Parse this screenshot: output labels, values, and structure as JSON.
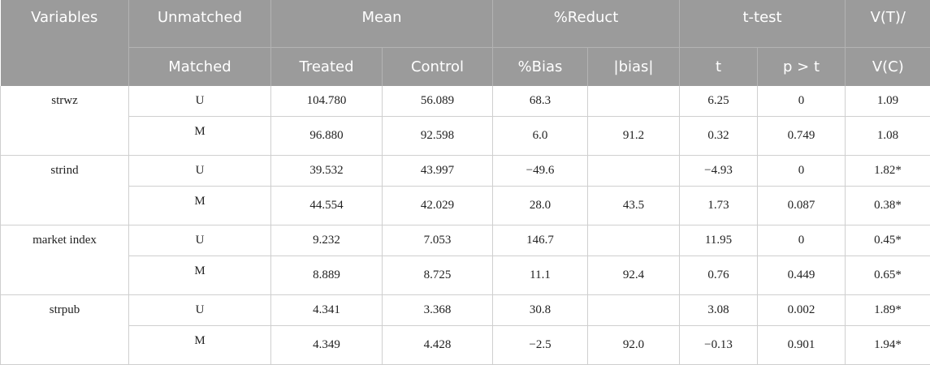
{
  "header": {
    "row1": {
      "variables": "Variables",
      "unmatched": "Unmatched",
      "mean": "Mean",
      "reduct": "%Reduct",
      "ttest": "t-test",
      "vratio_top": "V(T)/"
    },
    "row2": {
      "matched": "Matched",
      "treated": "Treated",
      "control": "Control",
      "bias_pct": "%Bias",
      "bias_abs": "|bias|",
      "t": "t",
      "p": "p > t",
      "vratio_bottom": "V(C)"
    }
  },
  "rows": [
    {
      "variable": "strwz",
      "sample": "U",
      "treated": "104.780",
      "control": "56.089",
      "bias": "68.3",
      "abs_bias": "",
      "t": "6.25",
      "p": "0",
      "vratio": "1.09"
    },
    {
      "variable": "",
      "sample": "M",
      "treated": "96.880",
      "control": "92.598",
      "bias": "6.0",
      "abs_bias": "91.2",
      "t": "0.32",
      "p": "0.749",
      "vratio": "1.08"
    },
    {
      "variable": "strind",
      "sample": "U",
      "treated": "39.532",
      "control": "43.997",
      "bias": "−49.6",
      "abs_bias": "",
      "t": "−4.93",
      "p": "0",
      "vratio": "1.82*"
    },
    {
      "variable": "",
      "sample": "M",
      "treated": "44.554",
      "control": "42.029",
      "bias": "28.0",
      "abs_bias": "43.5",
      "t": "1.73",
      "p": "0.087",
      "vratio": "0.38*"
    },
    {
      "variable": "market index",
      "sample": "U",
      "treated": "9.232",
      "control": "7.053",
      "bias": "146.7",
      "abs_bias": "",
      "t": "11.95",
      "p": "0",
      "vratio": "0.45*"
    },
    {
      "variable": "",
      "sample": "M",
      "treated": "8.889",
      "control": "8.725",
      "bias": "11.1",
      "abs_bias": "92.4",
      "t": "0.76",
      "p": "0.449",
      "vratio": "0.65*"
    },
    {
      "variable": "strpub",
      "sample": "U",
      "treated": "4.341",
      "control": "3.368",
      "bias": "30.8",
      "abs_bias": "",
      "t": "3.08",
      "p": "0.002",
      "vratio": "1.89*"
    },
    {
      "variable": "",
      "sample": "M",
      "treated": "4.349",
      "control": "4.428",
      "bias": "−2.5",
      "abs_bias": "92.0",
      "t": "−0.13",
      "p": "0.901",
      "vratio": "1.94*"
    }
  ]
}
